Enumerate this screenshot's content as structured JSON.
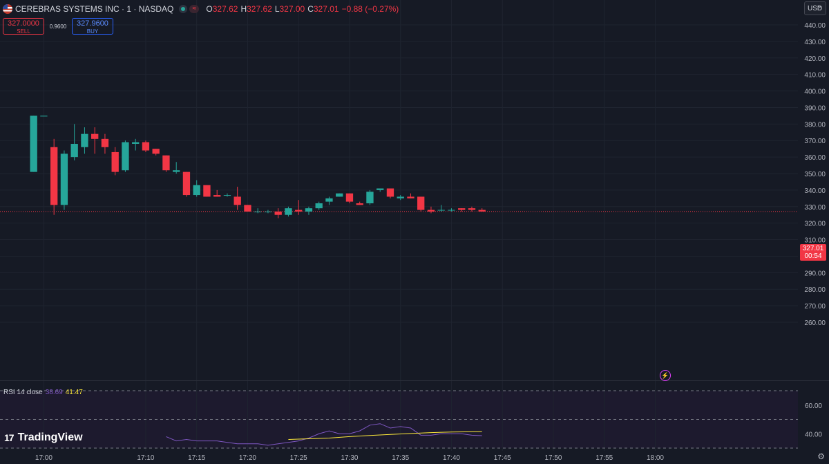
{
  "header": {
    "symbol": "CEREBRAS SYSTEMS INC · 1 · NASDAQ",
    "o_label": "O",
    "o": "327.62",
    "h_label": "H",
    "h": "327.62",
    "l_label": "L",
    "l": "327.00",
    "c_label": "C",
    "c": "327.01",
    "change": "−0.88 (−0.27%)",
    "tilde": "≈"
  },
  "trade": {
    "sell_price": "327.0000",
    "sell_label": "SELL",
    "spread": "0.9600",
    "buy_price": "327.9600",
    "buy_label": "BUY"
  },
  "currency": "USD",
  "price_tag": {
    "price": "327.01",
    "countdown": "00:54"
  },
  "rsi": {
    "label": "RSI 14 close",
    "rsi_value": "38.69",
    "ma_value": "41.47"
  },
  "brand": {
    "logo": "17",
    "name": "TradingView"
  },
  "icons": {
    "bolt": "lightning-icon",
    "settings": "gear-icon",
    "flag": "us-flag-icon"
  },
  "colors": {
    "up": "#26a69a",
    "down": "#f23645",
    "rsi_line": "#7e57c2",
    "rsi_ma": "#ffeb3b",
    "background": "#161a25"
  },
  "chart_data": {
    "type": "candlestick",
    "price_axis_ticks": [
      440,
      430,
      420,
      410,
      400,
      390,
      380,
      370,
      360,
      350,
      340,
      330,
      320,
      310,
      300,
      290,
      280,
      270,
      260
    ],
    "time_axis_labels": [
      "17:00",
      "17:10",
      "17:15",
      "17:20",
      "17:25",
      "17:30",
      "17:35",
      "17:40",
      "17:45",
      "17:50",
      "17:55",
      "18:00"
    ],
    "rsi_axis_ticks": [
      60,
      40
    ],
    "rsi_bands": [
      70,
      50,
      30
    ],
    "ylim": [
      260,
      443
    ],
    "xlim_minutes": [
      -4.3,
      74
    ],
    "candles": [
      {
        "t": -1,
        "o": 351,
        "h": 385,
        "l": 351,
        "c": 385
      },
      {
        "t": 0,
        "o": 385,
        "h": 385,
        "l": 385,
        "c": 385
      },
      {
        "t": 1,
        "o": 366,
        "h": 371,
        "l": 325,
        "c": 331
      },
      {
        "t": 2,
        "o": 331,
        "h": 364,
        "l": 328,
        "c": 362
      },
      {
        "t": 3,
        "o": 360,
        "h": 380,
        "l": 358,
        "c": 368
      },
      {
        "t": 4,
        "o": 366,
        "h": 378,
        "l": 362,
        "c": 374
      },
      {
        "t": 5,
        "o": 374,
        "h": 378,
        "l": 362,
        "c": 371
      },
      {
        "t": 6,
        "o": 371,
        "h": 374,
        "l": 362,
        "c": 366
      },
      {
        "t": 7,
        "o": 363,
        "h": 366,
        "l": 349,
        "c": 351
      },
      {
        "t": 8,
        "o": 352,
        "h": 370,
        "l": 351,
        "c": 369
      },
      {
        "t": 9,
        "o": 368,
        "h": 371,
        "l": 364,
        "c": 369
      },
      {
        "t": 10,
        "o": 369,
        "h": 370,
        "l": 363,
        "c": 364
      },
      {
        "t": 11,
        "o": 365,
        "h": 365,
        "l": 361,
        "c": 362
      },
      {
        "t": 12,
        "o": 361,
        "h": 361,
        "l": 351,
        "c": 352
      },
      {
        "t": 13,
        "o": 351,
        "h": 357,
        "l": 350,
        "c": 352
      },
      {
        "t": 14,
        "o": 351,
        "h": 351,
        "l": 336,
        "c": 337
      },
      {
        "t": 15,
        "o": 337,
        "h": 346,
        "l": 336,
        "c": 343
      },
      {
        "t": 16,
        "o": 343,
        "h": 343,
        "l": 336,
        "c": 336
      },
      {
        "t": 17,
        "o": 337,
        "h": 340,
        "l": 336,
        "c": 336
      },
      {
        "t": 18,
        "o": 337,
        "h": 338,
        "l": 336,
        "c": 337
      },
      {
        "t": 19,
        "o": 336,
        "h": 342,
        "l": 328,
        "c": 331
      },
      {
        "t": 20,
        "o": 331,
        "h": 331,
        "l": 327,
        "c": 327
      },
      {
        "t": 21,
        "o": 327,
        "h": 329,
        "l": 326,
        "c": 327
      },
      {
        "t": 22,
        "o": 327,
        "h": 328,
        "l": 326,
        "c": 327
      },
      {
        "t": 23,
        "o": 327,
        "h": 329,
        "l": 323,
        "c": 325
      },
      {
        "t": 24,
        "o": 325,
        "h": 330,
        "l": 324,
        "c": 329
      },
      {
        "t": 25,
        "o": 328,
        "h": 334,
        "l": 325,
        "c": 327
      },
      {
        "t": 26,
        "o": 327,
        "h": 330,
        "l": 325,
        "c": 329
      },
      {
        "t": 27,
        "o": 329,
        "h": 333,
        "l": 328,
        "c": 332
      },
      {
        "t": 28,
        "o": 333,
        "h": 336,
        "l": 331,
        "c": 335
      },
      {
        "t": 29,
        "o": 336,
        "h": 338,
        "l": 336,
        "c": 338
      },
      {
        "t": 30,
        "o": 338,
        "h": 338,
        "l": 332,
        "c": 333
      },
      {
        "t": 31,
        "o": 332,
        "h": 333,
        "l": 331,
        "c": 331
      },
      {
        "t": 32,
        "o": 332,
        "h": 340,
        "l": 331,
        "c": 339
      },
      {
        "t": 33,
        "o": 340,
        "h": 341,
        "l": 339,
        "c": 341
      },
      {
        "t": 34,
        "o": 341,
        "h": 341,
        "l": 335,
        "c": 336
      },
      {
        "t": 35,
        "o": 335,
        "h": 337,
        "l": 334,
        "c": 336
      },
      {
        "t": 36,
        "o": 336,
        "h": 338,
        "l": 335,
        "c": 335
      },
      {
        "t": 37,
        "o": 336,
        "h": 336,
        "l": 327,
        "c": 328
      },
      {
        "t": 38,
        "o": 328,
        "h": 330,
        "l": 326,
        "c": 327
      },
      {
        "t": 39,
        "o": 328,
        "h": 331,
        "l": 327,
        "c": 328
      },
      {
        "t": 40,
        "o": 328,
        "h": 329,
        "l": 327,
        "c": 328
      },
      {
        "t": 41,
        "o": 329,
        "h": 329,
        "l": 327,
        "c": 328
      },
      {
        "t": 42,
        "o": 329,
        "h": 330,
        "l": 327,
        "c": 328
      },
      {
        "t": 43,
        "o": 328,
        "h": 329,
        "l": 327,
        "c": 327
      }
    ],
    "last_price": 327.01,
    "rsi_series": [
      {
        "t": 12,
        "v": 38
      },
      {
        "t": 13,
        "v": 35
      },
      {
        "t": 14,
        "v": 36
      },
      {
        "t": 15,
        "v": 35
      },
      {
        "t": 16,
        "v": 35
      },
      {
        "t": 17,
        "v": 35
      },
      {
        "t": 18,
        "v": 34
      },
      {
        "t": 19,
        "v": 33
      },
      {
        "t": 20,
        "v": 33
      },
      {
        "t": 21,
        "v": 33
      },
      {
        "t": 22,
        "v": 32
      },
      {
        "t": 23,
        "v": 33
      },
      {
        "t": 24,
        "v": 34
      },
      {
        "t": 25,
        "v": 35
      },
      {
        "t": 26,
        "v": 37
      },
      {
        "t": 27,
        "v": 40
      },
      {
        "t": 28,
        "v": 42
      },
      {
        "t": 29,
        "v": 40
      },
      {
        "t": 30,
        "v": 40
      },
      {
        "t": 31,
        "v": 42
      },
      {
        "t": 32,
        "v": 46
      },
      {
        "t": 33,
        "v": 47
      },
      {
        "t": 34,
        "v": 44
      },
      {
        "t": 35,
        "v": 45
      },
      {
        "t": 36,
        "v": 44
      },
      {
        "t": 37,
        "v": 39
      },
      {
        "t": 38,
        "v": 39
      },
      {
        "t": 39,
        "v": 40
      },
      {
        "t": 40,
        "v": 40
      },
      {
        "t": 41,
        "v": 40
      },
      {
        "t": 42,
        "v": 39
      },
      {
        "t": 43,
        "v": 38.69
      }
    ],
    "rsi_ma_series": [
      {
        "t": 24,
        "v": 36
      },
      {
        "t": 26,
        "v": 36.5
      },
      {
        "t": 28,
        "v": 37
      },
      {
        "t": 30,
        "v": 38
      },
      {
        "t": 32,
        "v": 38.8
      },
      {
        "t": 34,
        "v": 39.5
      },
      {
        "t": 36,
        "v": 40.2
      },
      {
        "t": 38,
        "v": 40.8
      },
      {
        "t": 40,
        "v": 41.2
      },
      {
        "t": 42,
        "v": 41.4
      },
      {
        "t": 43,
        "v": 41.47
      }
    ]
  }
}
